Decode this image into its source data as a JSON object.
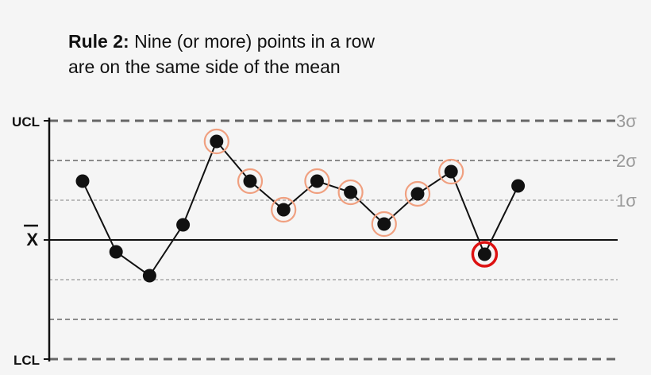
{
  "title": {
    "rule_label": "Rule 2:",
    "line1": "Nine (or more) points in a row",
    "line2": "are on the same side of the mean"
  },
  "colors": {
    "background": "#f5f5f5",
    "line": "#111111",
    "limit_dash": "#666666",
    "sigma_dash": "#999999",
    "sigma_label": "#9a9a9a",
    "highlight_ring": "#f0a080",
    "alert_ring": "#dd1111"
  },
  "chart_data": {
    "type": "line",
    "title": "Rule 2: Nine (or more) points in a row are on the same side of the mean",
    "ylim": [
      -3,
      3
    ],
    "x": [
      1,
      2,
      3,
      4,
      5,
      6,
      7,
      8,
      9,
      10,
      11,
      12,
      13,
      14
    ],
    "values": [
      1.48,
      -0.3,
      -0.9,
      0.38,
      2.48,
      1.48,
      0.76,
      1.48,
      1.2,
      0.4,
      1.16,
      1.72,
      -0.36,
      1.36
    ],
    "highlighted": [
      4,
      5,
      6,
      7,
      8,
      9,
      10,
      11
    ],
    "alert": [
      12
    ],
    "y_labels": [
      {
        "text": "UCL",
        "value": 3
      },
      {
        "text": "X",
        "value": 0
      },
      {
        "text": "LCL",
        "value": -3
      }
    ],
    "sigma_labels": [
      {
        "text": "3σ",
        "value": 3
      },
      {
        "text": "2σ",
        "value": 2
      },
      {
        "text": "1σ",
        "value": 1
      }
    ],
    "reference_lines": [
      3,
      2,
      1,
      0,
      -1,
      -2,
      -3
    ]
  }
}
